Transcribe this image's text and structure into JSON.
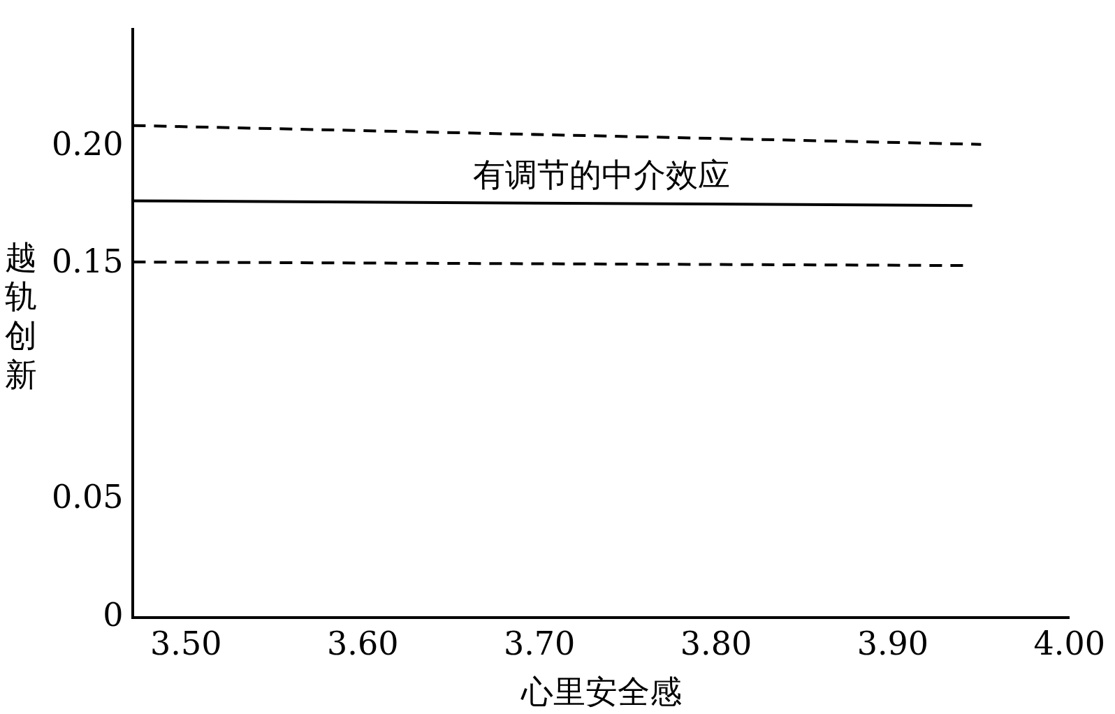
{
  "chart_data": {
    "type": "line",
    "xlabel": "心里安全感",
    "ylabel": "越轨创新",
    "xlim": [
      3.47,
      4.0
    ],
    "xticks": [
      {
        "value": 3.5,
        "label": "3.50"
      },
      {
        "value": 3.6,
        "label": "3.60"
      },
      {
        "value": 3.7,
        "label": "3.70"
      },
      {
        "value": 3.8,
        "label": "3.80"
      },
      {
        "value": 3.9,
        "label": "3.90"
      },
      {
        "value": 4.0,
        "label": "4.00"
      }
    ],
    "ylim": [
      0,
      0.25
    ],
    "yticks": [
      0,
      {
        "value": 0.05,
        "label": "0.05"
      },
      {
        "value": 0.15,
        "label": "0.15"
      },
      {
        "value": 0.2,
        "label": "0.20"
      }
    ],
    "grid": false,
    "legend": false,
    "marker": "none",
    "series": [
      {
        "color": "#000000",
        "line_style": "dashed",
        "x": [
          3.47,
          3.95
        ],
        "values": [
          0.209,
          0.201
        ]
      },
      {
        "color": "#000000",
        "line_style": "solid",
        "x": [
          3.47,
          3.945
        ],
        "values": [
          0.177,
          0.175
        ]
      },
      {
        "color": "#000000",
        "line_style": "dashed",
        "x": [
          3.47,
          3.94
        ],
        "values": [
          0.151,
          0.1495
        ]
      }
    ],
    "annotations": [
      "有调节的中介效应"
    ]
  }
}
